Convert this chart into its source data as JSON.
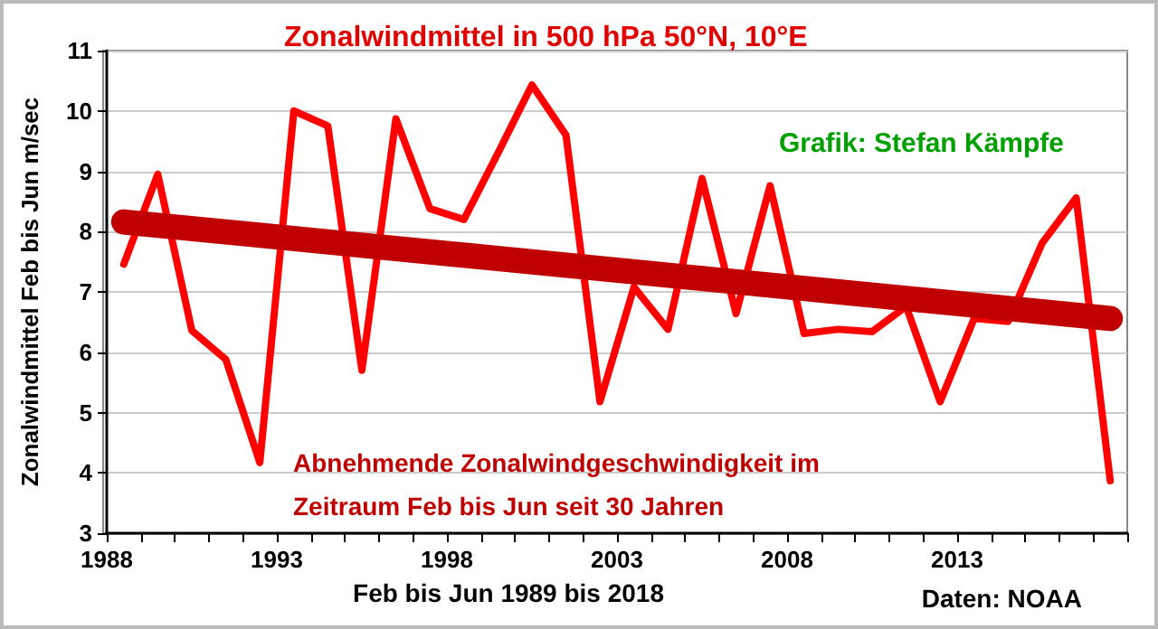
{
  "chart_data": {
    "type": "line",
    "title": "Zonalwindmittel in 500 hPa 50°N, 10°E",
    "xlabel": "Feb bis Jun 1989 bis 2018",
    "ylabel": "Zonalwindmittel Feb bis Jun m/sec",
    "annotations": [
      "Grafik: Stefan Kämpfe",
      "Abnehmende Zonalwindgeschwindigkeit im\nZeitraum Feb bis Jun seit 30 Jahren",
      "Daten: NOAA"
    ],
    "x": [
      1989,
      1990,
      1991,
      1992,
      1993,
      1994,
      1995,
      1996,
      1997,
      1998,
      1999,
      2000,
      2001,
      2002,
      2003,
      2004,
      2005,
      2006,
      2007,
      2008,
      2009,
      2010,
      2011,
      2012,
      2013,
      2014,
      2015,
      2016,
      2017,
      2018
    ],
    "series": [
      {
        "color": "#ff0000",
        "values": [
          7.46,
          8.95,
          6.36,
          5.88,
          4.17,
          10.0,
          9.75,
          5.7,
          9.87,
          8.38,
          8.2,
          9.3,
          10.43,
          9.6,
          5.18,
          7.08,
          6.38,
          8.88,
          6.64,
          8.76,
          6.31,
          6.38,
          6.34,
          6.76,
          5.18,
          6.56,
          6.51,
          7.81,
          8.56,
          3.87
        ]
      },
      {
        "color": "#c00000",
        "x": [
          1989,
          2018
        ],
        "values": [
          8.16,
          6.56
        ]
      }
    ],
    "xlim": [
      1988.5,
      2018.5
    ],
    "xticks": [
      {
        "value": 1988.5,
        "label": "1988"
      },
      {
        "value": 1989.5,
        "label": null
      },
      {
        "value": 1990.5,
        "label": null
      },
      {
        "value": 1991.5,
        "label": null
      },
      {
        "value": 1992.5,
        "label": null
      },
      {
        "value": 1993.5,
        "label": "1993"
      },
      {
        "value": 1994.5,
        "label": null
      },
      {
        "value": 1995.5,
        "label": null
      },
      {
        "value": 1996.5,
        "label": null
      },
      {
        "value": 1997.5,
        "label": null
      },
      {
        "value": 1998.5,
        "label": "1998"
      },
      {
        "value": 1999.5,
        "label": null
      },
      {
        "value": 2000.5,
        "label": null
      },
      {
        "value": 2001.5,
        "label": null
      },
      {
        "value": 2002.5,
        "label": null
      },
      {
        "value": 2003.5,
        "label": "2003"
      },
      {
        "value": 2004.5,
        "label": null
      },
      {
        "value": 2005.5,
        "label": null
      },
      {
        "value": 2006.5,
        "label": null
      },
      {
        "value": 2007.5,
        "label": null
      },
      {
        "value": 2008.5,
        "label": "2008"
      },
      {
        "value": 2009.5,
        "label": null
      },
      {
        "value": 2010.5,
        "label": null
      },
      {
        "value": 2011.5,
        "label": null
      },
      {
        "value": 2012.5,
        "label": null
      },
      {
        "value": 2013.5,
        "label": "2013"
      },
      {
        "value": 2014.5,
        "label": null
      },
      {
        "value": 2015.5,
        "label": null
      },
      {
        "value": 2016.5,
        "label": null
      },
      {
        "value": 2017.5,
        "label": null
      },
      {
        "value": 2018.5,
        "label": null
      }
    ],
    "ylim": [
      3,
      11
    ],
    "yticks": [
      3,
      4,
      5,
      6,
      7,
      8,
      9,
      10,
      11
    ],
    "grid": "y",
    "marker": "none",
    "line_style": "solid"
  }
}
